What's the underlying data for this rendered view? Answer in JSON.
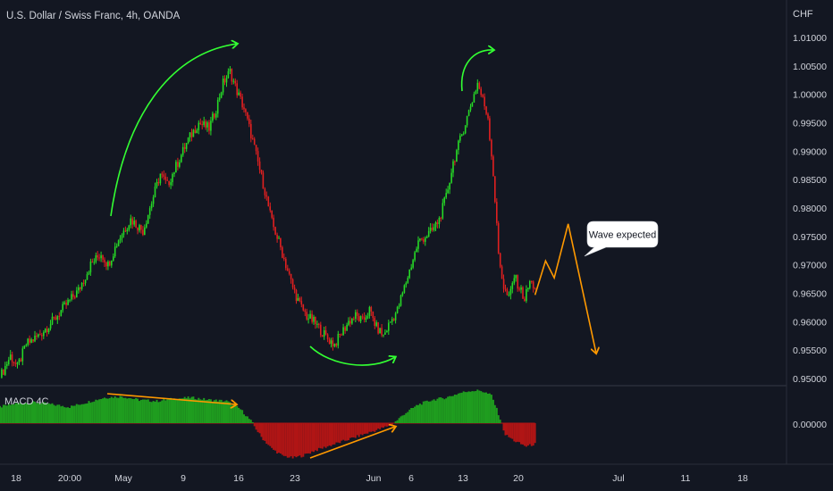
{
  "header": {
    "title": "U.S. Dollar / Swiss Franc, 4h, OANDA",
    "currency": "CHF"
  },
  "indicator": {
    "name": "MACD 4C",
    "zero_label": "0.00000"
  },
  "annotation": {
    "bubble_text": "Wave expected"
  },
  "colors": {
    "background": "#131722",
    "up": "#26d926",
    "down": "#e02020",
    "hist_pos": "#1f9d1f",
    "hist_neg": "#b01515",
    "arrow_green": "#33ff33",
    "arrow_orange": "#ff9900"
  },
  "chart_data": [
    {
      "type": "candlestick",
      "title": "U.S. Dollar / Swiss Franc, 4h, OANDA",
      "y_unit": "CHF",
      "y_ticks": [
        "1.01000",
        "1.00500",
        "1.00000",
        "0.99500",
        "0.99000",
        "0.98500",
        "0.98000",
        "0.97500",
        "0.97000",
        "0.96500",
        "0.96000",
        "0.95500",
        "0.95000"
      ],
      "ylim": [
        0.9495,
        1.0125
      ],
      "x_ticks": [
        "18",
        "20:00",
        "May",
        "9",
        "16",
        "23",
        "Jun",
        "6",
        "13",
        "20",
        "Jul",
        "11",
        "18"
      ],
      "close_path": [
        [
          0,
          0.9502
        ],
        [
          6,
          0.954
        ],
        [
          10,
          0.952
        ],
        [
          15,
          0.956
        ],
        [
          22,
          0.9575
        ],
        [
          30,
          0.96
        ],
        [
          38,
          0.963
        ],
        [
          45,
          0.9655
        ],
        [
          52,
          0.97
        ],
        [
          58,
          0.972
        ],
        [
          62,
          0.97
        ],
        [
          68,
          0.9745
        ],
        [
          75,
          0.978
        ],
        [
          82,
          0.976
        ],
        [
          88,
          0.982
        ],
        [
          92,
          0.986
        ],
        [
          96,
          0.984
        ],
        [
          102,
          0.988
        ],
        [
          108,
          0.992
        ],
        [
          114,
          0.995
        ],
        [
          120,
          0.994
        ],
        [
          124,
          0.9975
        ],
        [
          128,
          1.002
        ],
        [
          132,
          1.004
        ],
        [
          136,
          1.0005
        ],
        [
          140,
          0.9975
        ],
        [
          144,
          0.993
        ],
        [
          148,
          0.988
        ],
        [
          152,
          0.983
        ],
        [
          156,
          0.9775
        ],
        [
          160,
          0.974
        ],
        [
          164,
          0.97
        ],
        [
          168,
          0.966
        ],
        [
          172,
          0.963
        ],
        [
          176,
          0.961
        ],
        [
          180,
          0.96
        ],
        [
          184,
          0.9585
        ],
        [
          188,
          0.957
        ],
        [
          192,
          0.956
        ],
        [
          196,
          0.958
        ],
        [
          200,
          0.96
        ],
        [
          204,
          0.961
        ],
        [
          208,
          0.96
        ],
        [
          212,
          0.962
        ],
        [
          216,
          0.959
        ],
        [
          220,
          0.9575
        ],
        [
          224,
          0.96
        ],
        [
          228,
          0.962
        ],
        [
          232,
          0.966
        ],
        [
          236,
          0.97
        ],
        [
          240,
          0.974
        ],
        [
          244,
          0.975
        ],
        [
          248,
          0.976
        ],
        [
          252,
          0.978
        ],
        [
          256,
          0.982
        ],
        [
          260,
          0.988
        ],
        [
          264,
          0.992
        ],
        [
          268,
          0.996
        ],
        [
          272,
          1.0
        ],
        [
          274,
          1.002
        ],
        [
          277,
          0.999
        ],
        [
          280,
          0.996
        ],
        [
          283,
          0.986
        ],
        [
          286,
          0.972
        ],
        [
          289,
          0.966
        ],
        [
          292,
          0.964
        ],
        [
          295,
          0.968
        ],
        [
          298,
          0.966
        ],
        [
          301,
          0.964
        ],
        [
          304,
          0.967
        ],
        [
          307,
          0.966
        ]
      ],
      "projection": {
        "name": "Wave expected",
        "points": [
          [
            307,
            0.9647
          ],
          [
            313,
            0.9707
          ],
          [
            318,
            0.9677
          ],
          [
            326,
            0.9772
          ],
          [
            342,
            0.9545
          ]
        ]
      }
    },
    {
      "type": "histogram",
      "title": "MACD 4C",
      "zero_tick": "0.00000",
      "bins": [
        [
          0,
          0.007
        ],
        [
          10,
          0.0085
        ],
        [
          20,
          0.009
        ],
        [
          30,
          0.008
        ],
        [
          40,
          0.007
        ],
        [
          50,
          0.009
        ],
        [
          60,
          0.011
        ],
        [
          70,
          0.0115
        ],
        [
          80,
          0.01
        ],
        [
          90,
          0.0095
        ],
        [
          100,
          0.0105
        ],
        [
          110,
          0.011
        ],
        [
          120,
          0.01
        ],
        [
          130,
          0.0095
        ],
        [
          138,
          0.006
        ],
        [
          144,
          0.001
        ],
        [
          150,
          -0.006
        ],
        [
          156,
          -0.011
        ],
        [
          162,
          -0.014
        ],
        [
          168,
          -0.015
        ],
        [
          174,
          -0.014
        ],
        [
          180,
          -0.012
        ],
        [
          188,
          -0.01
        ],
        [
          196,
          -0.008
        ],
        [
          204,
          -0.006
        ],
        [
          212,
          -0.004
        ],
        [
          220,
          -0.002
        ],
        [
          226,
          0.0
        ],
        [
          232,
          0.004
        ],
        [
          240,
          0.008
        ],
        [
          248,
          0.01
        ],
        [
          256,
          0.011
        ],
        [
          264,
          0.013
        ],
        [
          270,
          0.014
        ],
        [
          276,
          0.014
        ],
        [
          282,
          0.012
        ],
        [
          286,
          0.004
        ],
        [
          290,
          -0.005
        ],
        [
          296,
          -0.008
        ],
        [
          302,
          -0.01
        ],
        [
          307,
          -0.009
        ]
      ]
    }
  ]
}
